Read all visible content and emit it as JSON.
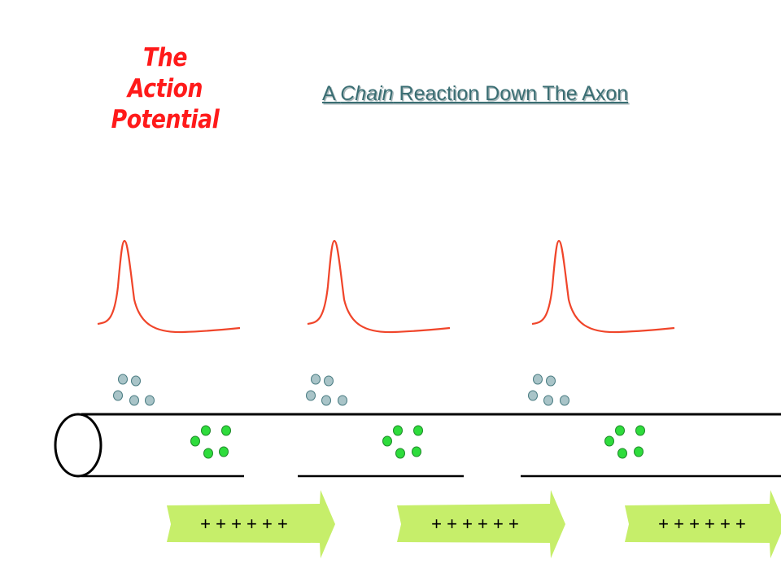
{
  "title": {
    "lines": [
      "The",
      "Action",
      "Potential"
    ]
  },
  "subtitle": {
    "prefix": "A ",
    "emphasis": "Chain",
    "suffix": " Reaction Down The Axon"
  },
  "arrows": {
    "labels": [
      "+ + + + + +",
      "+ + + + + +",
      "+ + + + + +"
    ]
  },
  "colors": {
    "title": "#ff1a1a",
    "spike_curve": "#f0452a",
    "outer_ions_fill": "#a9c4c8",
    "outer_ions_stroke": "#4a7c82",
    "inner_ions_fill": "#2edc3c",
    "inner_ions_stroke": "#1f8a2a",
    "arrow_fill": "#c6ee6a",
    "axon_stroke": "#000000"
  }
}
